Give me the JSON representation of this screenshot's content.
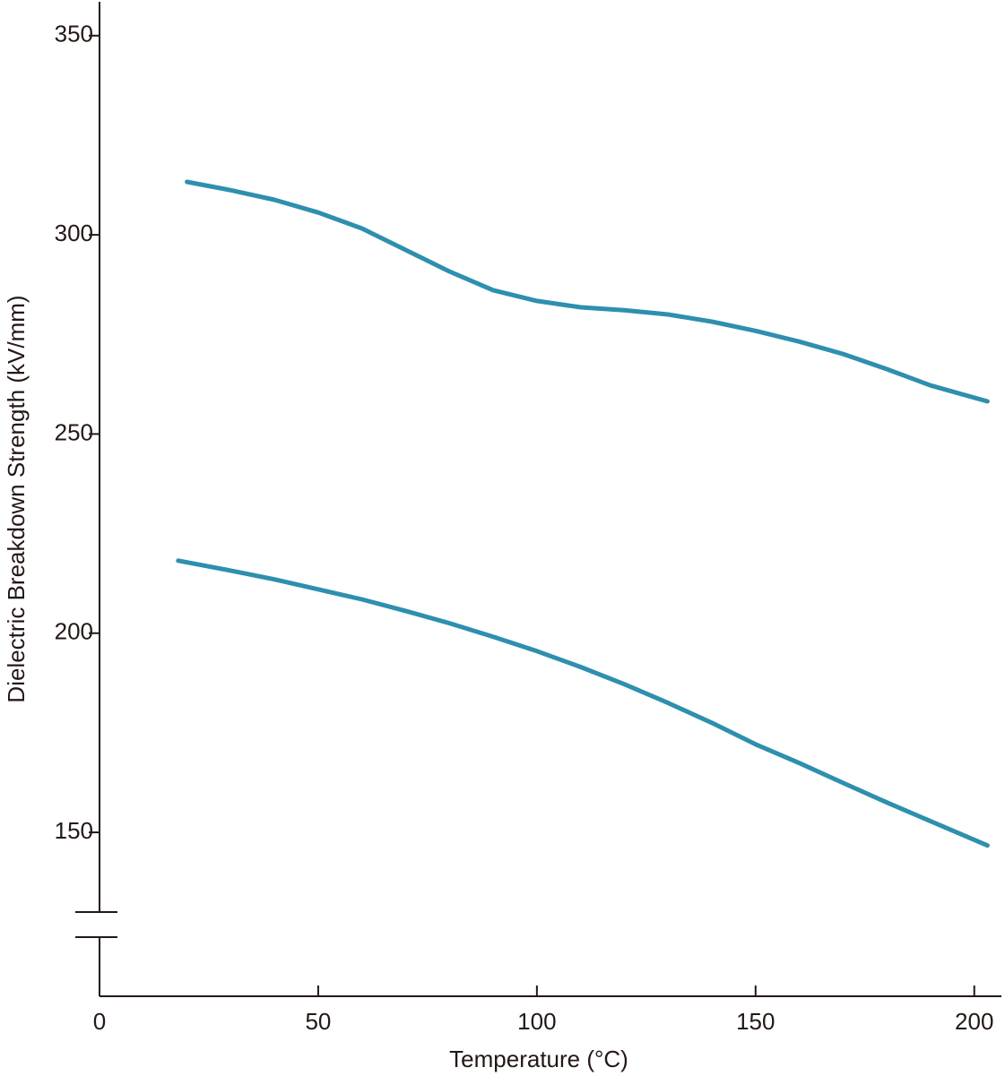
{
  "chart_data": {
    "type": "line",
    "x_label": "Temperature (°C)",
    "y_label": "Dielectric Breakdown Strength (kV/mm)",
    "series": [
      {
        "color": "#2e8fae",
        "x": [
          20,
          30,
          40,
          50,
          60,
          70,
          80,
          90,
          100,
          110,
          120,
          130,
          140,
          150,
          160,
          170,
          180,
          190,
          203
        ],
        "values": [
          313.3,
          311.2,
          308.8,
          305.6,
          301.6,
          296.2,
          290.8,
          286.1,
          283.4,
          281.8,
          281.1,
          280,
          278.2,
          275.9,
          273.2,
          270.1,
          266.3,
          262.2,
          258.2
        ]
      },
      {
        "color": "#2e8fae",
        "x": [
          18,
          30,
          40,
          50,
          60,
          70,
          80,
          90,
          100,
          110,
          120,
          130,
          140,
          150,
          160,
          170,
          180,
          190,
          203
        ],
        "values": [
          218.2,
          215.7,
          213.5,
          211,
          208.5,
          205.6,
          202.5,
          199.1,
          195.5,
          191.5,
          187.2,
          182.5,
          177.5,
          172.1,
          167.4,
          162.4,
          157.5,
          152.8,
          146.7
        ]
      }
    ],
    "xlim": [
      0,
      206
    ],
    "xticks": [
      0,
      50,
      100,
      150,
      200
    ],
    "ylim": [
      130,
      358.5
    ],
    "yticks": [
      150,
      200,
      250,
      300,
      350
    ],
    "y_axis_break": true
  }
}
